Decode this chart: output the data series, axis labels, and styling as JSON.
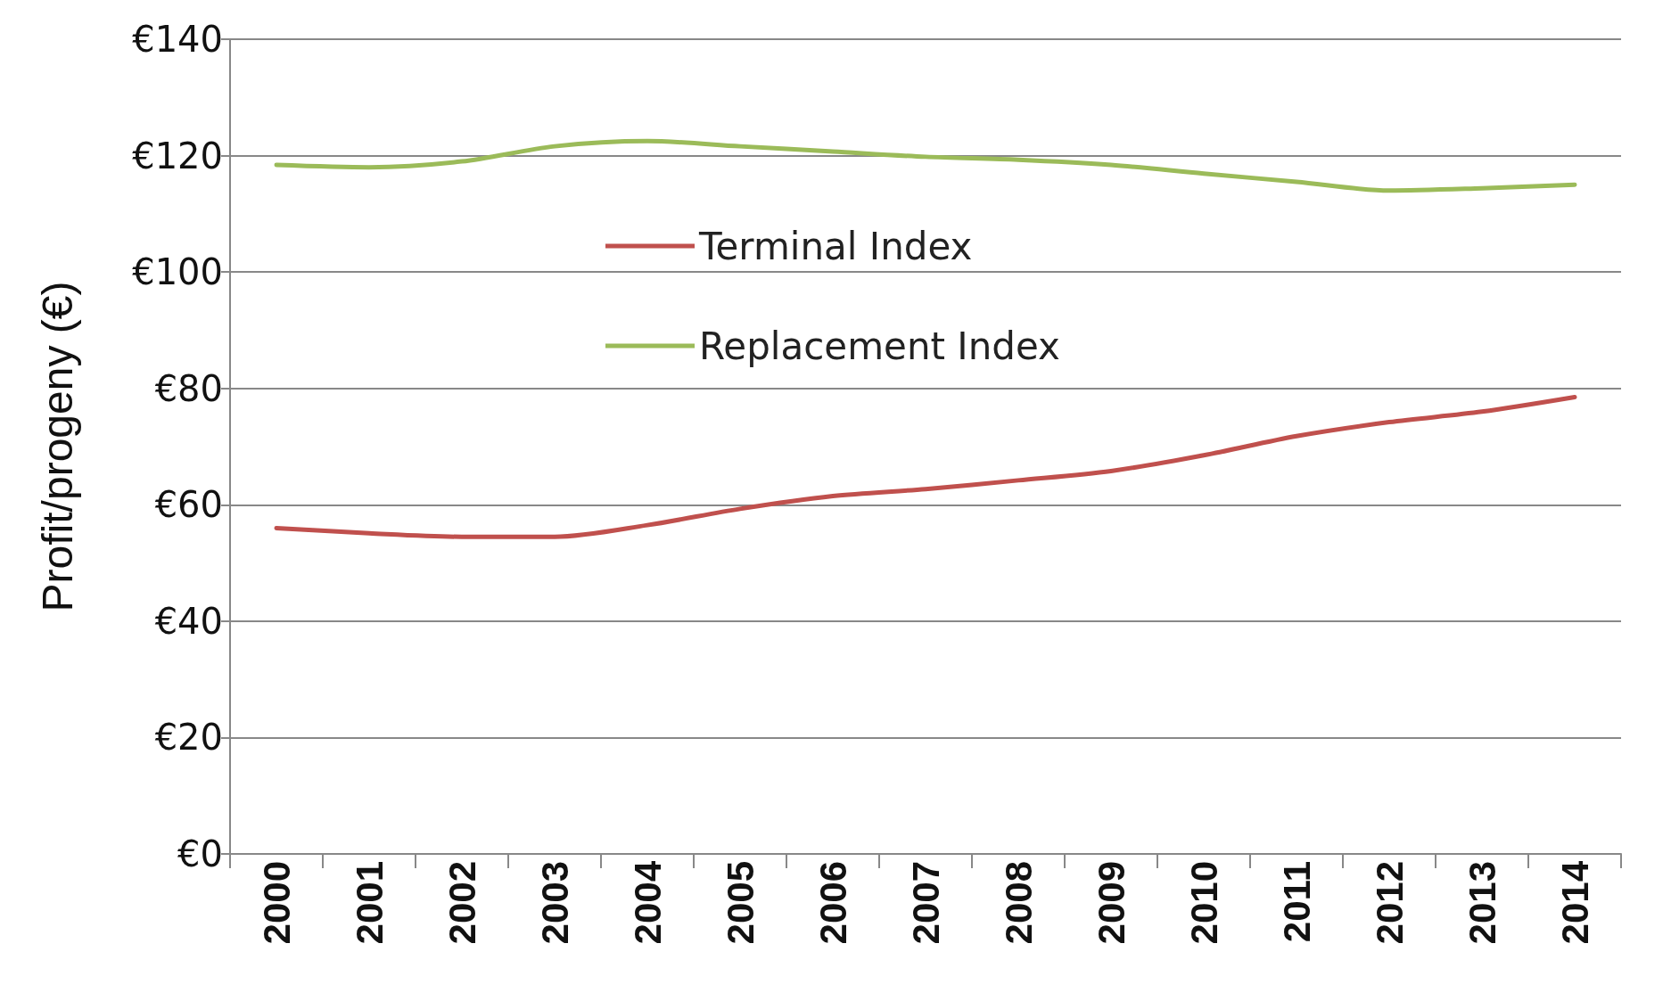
{
  "chart_data": {
    "type": "line",
    "ylabel": "Profit/progeny (€)",
    "categories": [
      "2000",
      "2001",
      "2002",
      "2003",
      "2004",
      "2005",
      "2006",
      "2007",
      "2008",
      "2009",
      "2010",
      "2011",
      "2012",
      "2013",
      "2014"
    ],
    "series": [
      {
        "name": "Terminal Index",
        "color": "#c0504d",
        "values": [
          56,
          55.1,
          54.5,
          54.5,
          56.5,
          59.3,
          61.5,
          62.7,
          64.2,
          65.8,
          68.5,
          71.8,
          74.2,
          76,
          78.5
        ]
      },
      {
        "name": "Replacement Index",
        "color": "#9bbb59",
        "values": [
          118.4,
          118,
          119,
          121.6,
          122.5,
          121.6,
          120.7,
          119.8,
          119.3,
          118.4,
          116.9,
          115.5,
          114,
          114.4,
          115
        ]
      }
    ],
    "ylim": [
      0,
      140
    ],
    "yticks": [
      {
        "value": 0,
        "label": "€0"
      },
      {
        "value": 20,
        "label": "€20"
      },
      {
        "value": 40,
        "label": "€40"
      },
      {
        "value": 60,
        "label": "€60"
      },
      {
        "value": 80,
        "label": "€80"
      },
      {
        "value": 100,
        "label": "€100"
      },
      {
        "value": 120,
        "label": "€120"
      },
      {
        "value": 140,
        "label": "€140"
      }
    ],
    "grid": "y",
    "legend": "top",
    "marker": "none",
    "line_style": "solid"
  }
}
